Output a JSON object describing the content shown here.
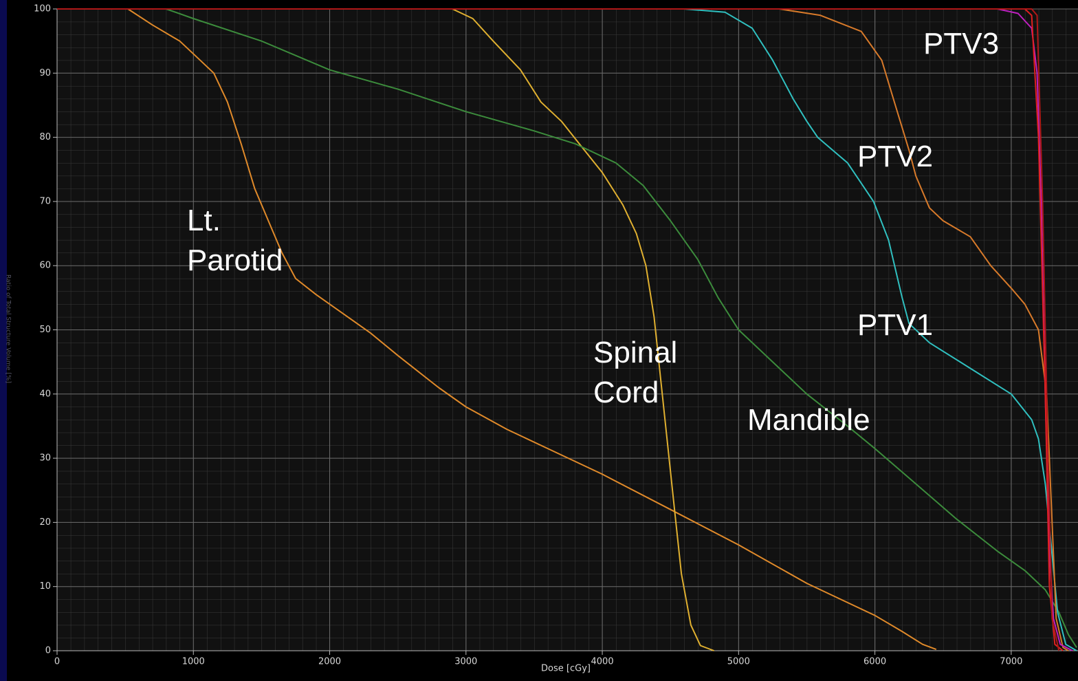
{
  "chart_data": {
    "type": "line",
    "xlabel": "Dose [cGy]",
    "ylabel": "Ratio of Total Structure Volume [%]",
    "xlim": [
      0,
      7490
    ],
    "ylim": [
      0,
      100
    ],
    "xticks": [
      0,
      1000,
      2000,
      3000,
      4000,
      5000,
      6000,
      7000
    ],
    "yticks": [
      0,
      10,
      20,
      30,
      40,
      50,
      60,
      70,
      80,
      90,
      100
    ],
    "grid": true,
    "series": [
      {
        "name": "Lt. Parotid",
        "color": "#e08a2a",
        "x": [
          0,
          520,
          700,
          900,
          1000,
          1150,
          1250,
          1350,
          1450,
          1550,
          1650,
          1750,
          1900,
          2100,
          2300,
          2500,
          2800,
          3000,
          3300,
          3600,
          4000,
          4500,
          5000,
          5500,
          5800,
          6000,
          6200,
          6350,
          6450
        ],
        "values": [
          100,
          100,
          97.5,
          95,
          93,
          90,
          85.5,
          79,
          72,
          67,
          62,
          58,
          55.5,
          52.5,
          49.5,
          46,
          41,
          38,
          34.5,
          31.5,
          27.5,
          22,
          16.5,
          10.5,
          7.5,
          5.5,
          3,
          1,
          0.2
        ]
      },
      {
        "name": "Spinal Cord",
        "color": "#e0b030",
        "x": [
          0,
          2900,
          3050,
          3200,
          3400,
          3550,
          3700,
          3850,
          4000,
          4150,
          4250,
          4320,
          4380,
          4430,
          4480,
          4530,
          4580,
          4650,
          4720,
          4820
        ],
        "values": [
          100,
          100,
          98.5,
          95,
          90.5,
          85.5,
          82.5,
          78.5,
          74.5,
          69.5,
          65,
          60,
          52,
          42,
          32,
          22,
          12,
          4,
          0.8,
          0
        ]
      },
      {
        "name": "Mandible",
        "color": "#3c8c3c",
        "x": [
          0,
          800,
          1000,
          1500,
          2000,
          2500,
          3000,
          3500,
          3800,
          4100,
          4300,
          4500,
          4700,
          4850,
          5000,
          5300,
          5500,
          5800,
          6000,
          6300,
          6600,
          6900,
          7100,
          7250,
          7350,
          7420,
          7480
        ],
        "values": [
          100,
          100,
          98.5,
          95,
          90.5,
          87.5,
          84,
          81,
          79,
          76,
          72.5,
          67,
          61,
          55,
          50,
          44,
          40,
          35,
          31.5,
          26,
          20.5,
          15.5,
          12.5,
          9.5,
          6,
          2.5,
          0.5
        ]
      },
      {
        "name": "PTV1",
        "color": "#30c0c0",
        "x": [
          0,
          4600,
          4900,
          5100,
          5250,
          5400,
          5500,
          5580,
          5800,
          5990,
          6100,
          6200,
          6250,
          6400,
          6700,
          7000,
          7150,
          7200,
          7250,
          7300,
          7340,
          7400,
          7480
        ],
        "values": [
          100,
          100,
          99.5,
          97,
          92,
          86,
          82.5,
          80,
          76,
          70,
          64,
          55,
          51,
          48,
          44,
          40,
          36,
          33,
          26,
          15,
          6,
          1,
          0
        ]
      },
      {
        "name": "PTV2",
        "color": "#d87a2a",
        "x": [
          0,
          5300,
          5600,
          5900,
          6050,
          6150,
          6250,
          6300,
          6400,
          6500,
          6700,
          6850,
          7000,
          7100,
          7200,
          7260,
          7300,
          7330,
          7380,
          7420
        ],
        "values": [
          100,
          100,
          99,
          96.5,
          92,
          85,
          78,
          74,
          69,
          67,
          64.5,
          60,
          56.5,
          54,
          50,
          40,
          20,
          5,
          0.5,
          0
        ]
      },
      {
        "name": "PTV3",
        "color": "#c020c0",
        "x": [
          0,
          6900,
          7050,
          7150,
          7190,
          7220,
          7250,
          7280,
          7310,
          7360,
          7450
        ],
        "values": [
          100,
          100,
          99.3,
          97,
          90,
          70,
          40,
          15,
          5,
          1,
          0
        ]
      },
      {
        "color": "#e02020",
        "x": [
          0,
          7100,
          7150,
          7200,
          7250,
          7280,
          7320,
          7380
        ],
        "values": [
          100,
          100,
          99,
          80,
          40,
          10,
          1,
          0
        ]
      },
      {
        "color": "#b01818",
        "x": [
          0,
          7150,
          7190,
          7230,
          7270,
          7300,
          7350
        ],
        "values": [
          100,
          100,
          99,
          70,
          30,
          5,
          0
        ]
      }
    ]
  }
}
